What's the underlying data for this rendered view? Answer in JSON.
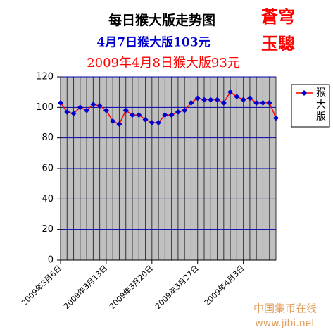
{
  "chart_data": {
    "type": "line",
    "title": "每日猴大版走势图",
    "annotations": [
      "4月7日猴大版103元",
      "2009年4月8日猴大版93元"
    ],
    "stamp": [
      "蒼穹",
      "玉驄"
    ],
    "watermark": [
      "中国集币在线",
      "www.jibi.net"
    ],
    "categories": [
      "2009年3月6日",
      null,
      null,
      null,
      null,
      null,
      null,
      "2009年3月13日",
      null,
      null,
      null,
      null,
      null,
      null,
      "2009年3月20日",
      null,
      null,
      null,
      null,
      null,
      null,
      "2009年3月27日",
      null,
      null,
      null,
      null,
      null,
      null,
      "2009年4月3日",
      null,
      null,
      null,
      null,
      null
    ],
    "series": [
      {
        "name": "猴大版",
        "color": "#ff0000",
        "marker_color": "#0000cc",
        "values": [
          103,
          97,
          96,
          100,
          98,
          102,
          101,
          98,
          91,
          89,
          98,
          95,
          95,
          92,
          90,
          90,
          95,
          95,
          97,
          98,
          103,
          106,
          105,
          105,
          105,
          103,
          110,
          107,
          105,
          106,
          103,
          103,
          103,
          93
        ]
      }
    ],
    "ylim": [
      0,
      120
    ],
    "yticks": [
      0,
      20,
      40,
      60,
      80,
      100,
      120
    ],
    "grid": true,
    "legend": "right"
  }
}
